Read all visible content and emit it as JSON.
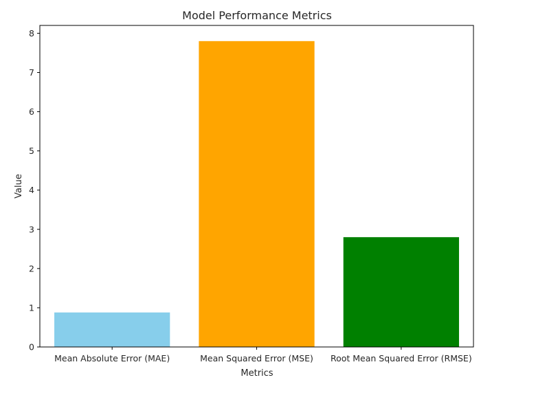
{
  "chart_data": {
    "type": "bar",
    "title": "Model Performance Metrics",
    "xlabel": "Metrics",
    "ylabel": "Value",
    "categories": [
      "Mean Absolute Error (MAE)",
      "Mean Squared Error (MSE)",
      "Root Mean Squared Error (RMSE)"
    ],
    "values": [
      0.88,
      7.8,
      2.8
    ],
    "colors": [
      "#87ceeb",
      "#ffa500",
      "#008000"
    ],
    "ylim": [
      0,
      8.2
    ],
    "yticks": [
      "0",
      "1",
      "2",
      "3",
      "4",
      "5",
      "6",
      "7",
      "8"
    ],
    "grid": false,
    "legend": "none"
  }
}
